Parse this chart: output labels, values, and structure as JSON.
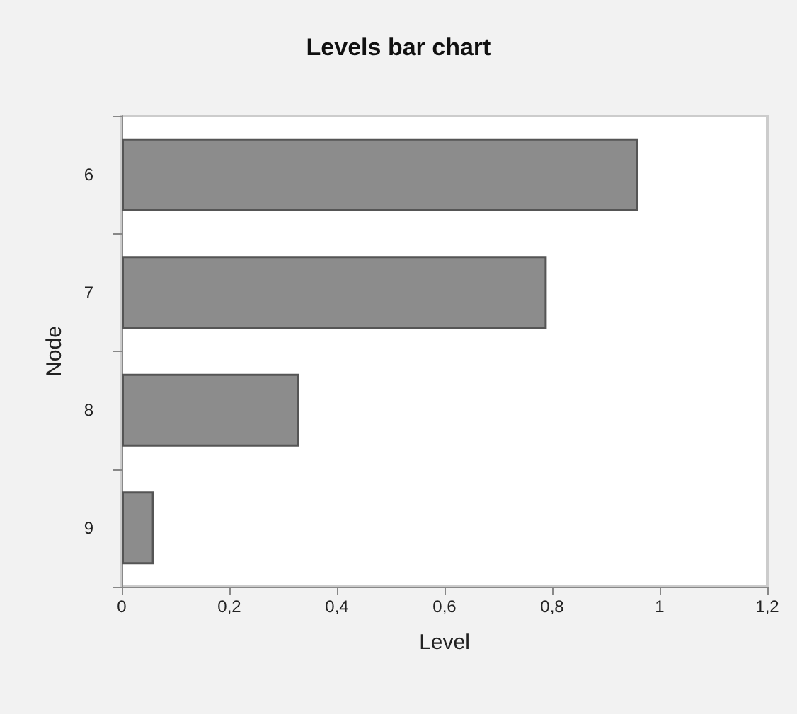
{
  "chart_data": {
    "type": "bar",
    "orientation": "horizontal",
    "title": "Levels bar chart",
    "xlabel": "Level",
    "ylabel": "Node",
    "categories": [
      "6",
      "7",
      "8",
      "9"
    ],
    "values": [
      0.96,
      0.79,
      0.33,
      0.06
    ],
    "color": "#8c8c8c",
    "xlim": [
      0,
      1.2
    ],
    "xticks": [
      0,
      {
        "value": 0.2,
        "label": "0,2"
      },
      {
        "value": 0.4,
        "label": "0,4"
      },
      {
        "value": 0.6,
        "label": "0,6"
      },
      {
        "value": 0.8,
        "label": "0,8"
      },
      1,
      {
        "value": 1.2,
        "label": "1,2"
      }
    ],
    "grid": false
  }
}
